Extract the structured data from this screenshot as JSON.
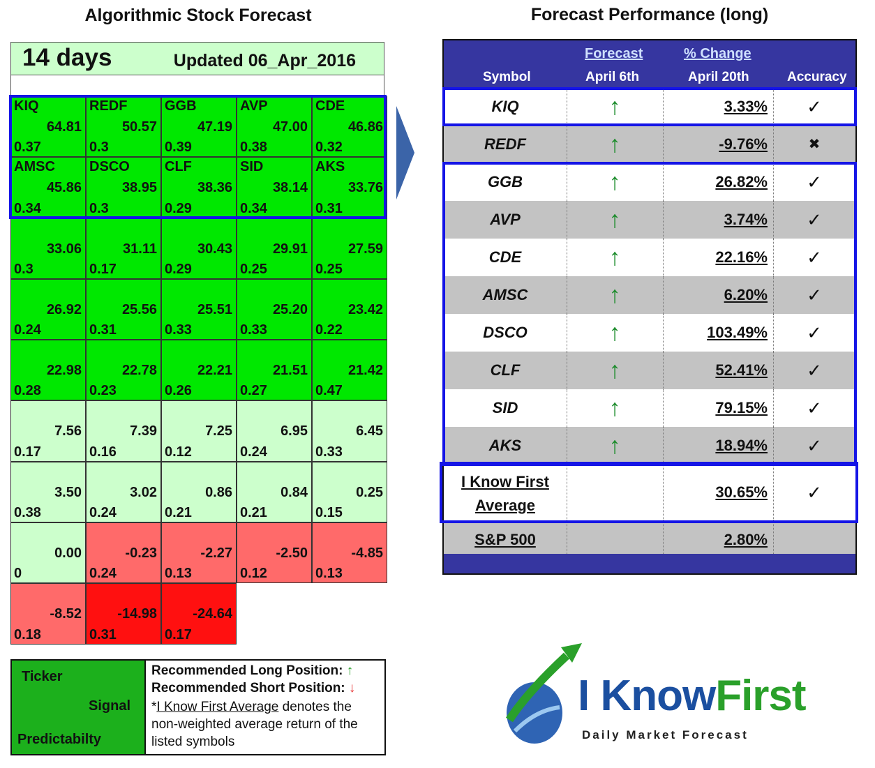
{
  "left": {
    "title": "Algorithmic Stock Forecast",
    "horizon": "14 days",
    "updated": "Updated 06_Apr_2016",
    "cells": [
      {
        "ticker": "KIQ",
        "signal": "64.81",
        "pred": "0.37",
        "shade": "strong"
      },
      {
        "ticker": "REDF",
        "signal": "50.57",
        "pred": "0.3",
        "shade": "strong"
      },
      {
        "ticker": "GGB",
        "signal": "47.19",
        "pred": "0.39",
        "shade": "strong"
      },
      {
        "ticker": "AVP",
        "signal": "47.00",
        "pred": "0.38",
        "shade": "strong"
      },
      {
        "ticker": "CDE",
        "signal": "46.86",
        "pred": "0.32",
        "shade": "strong"
      },
      {
        "ticker": "AMSC",
        "signal": "45.86",
        "pred": "0.34",
        "shade": "strong"
      },
      {
        "ticker": "DSCO",
        "signal": "38.95",
        "pred": "0.3",
        "shade": "strong"
      },
      {
        "ticker": "CLF",
        "signal": "38.36",
        "pred": "0.29",
        "shade": "strong"
      },
      {
        "ticker": "SID",
        "signal": "38.14",
        "pred": "0.34",
        "shade": "strong"
      },
      {
        "ticker": "AKS",
        "signal": "33.76",
        "pred": "0.31",
        "shade": "strong"
      },
      {
        "ticker": "",
        "signal": "33.06",
        "pred": "0.3",
        "shade": "strong"
      },
      {
        "ticker": "",
        "signal": "31.11",
        "pred": "0.17",
        "shade": "strong"
      },
      {
        "ticker": "",
        "signal": "30.43",
        "pred": "0.29",
        "shade": "strong"
      },
      {
        "ticker": "",
        "signal": "29.91",
        "pred": "0.25",
        "shade": "strong"
      },
      {
        "ticker": "",
        "signal": "27.59",
        "pred": "0.25",
        "shade": "strong"
      },
      {
        "ticker": "",
        "signal": "26.92",
        "pred": "0.24",
        "shade": "strong"
      },
      {
        "ticker": "",
        "signal": "25.56",
        "pred": "0.31",
        "shade": "strong"
      },
      {
        "ticker": "",
        "signal": "25.51",
        "pred": "0.33",
        "shade": "strong"
      },
      {
        "ticker": "",
        "signal": "25.20",
        "pred": "0.33",
        "shade": "strong"
      },
      {
        "ticker": "",
        "signal": "23.42",
        "pred": "0.22",
        "shade": "strong"
      },
      {
        "ticker": "",
        "signal": "22.98",
        "pred": "0.28",
        "shade": "strong"
      },
      {
        "ticker": "",
        "signal": "22.78",
        "pred": "0.23",
        "shade": "strong"
      },
      {
        "ticker": "",
        "signal": "22.21",
        "pred": "0.26",
        "shade": "strong"
      },
      {
        "ticker": "",
        "signal": "21.51",
        "pred": "0.27",
        "shade": "strong"
      },
      {
        "ticker": "",
        "signal": "21.42",
        "pred": "0.47",
        "shade": "strong"
      },
      {
        "ticker": "",
        "signal": "7.56",
        "pred": "0.17",
        "shade": "light"
      },
      {
        "ticker": "",
        "signal": "7.39",
        "pred": "0.16",
        "shade": "light"
      },
      {
        "ticker": "",
        "signal": "7.25",
        "pred": "0.12",
        "shade": "light"
      },
      {
        "ticker": "",
        "signal": "6.95",
        "pred": "0.24",
        "shade": "light"
      },
      {
        "ticker": "",
        "signal": "6.45",
        "pred": "0.33",
        "shade": "light"
      },
      {
        "ticker": "",
        "signal": "3.50",
        "pred": "0.38",
        "shade": "light"
      },
      {
        "ticker": "",
        "signal": "3.02",
        "pred": "0.24",
        "shade": "light"
      },
      {
        "ticker": "",
        "signal": "0.86",
        "pred": "0.21",
        "shade": "light"
      },
      {
        "ticker": "",
        "signal": "0.84",
        "pred": "0.21",
        "shade": "light"
      },
      {
        "ticker": "",
        "signal": "0.25",
        "pred": "0.15",
        "shade": "light"
      },
      {
        "ticker": "",
        "signal": "0.00",
        "pred": "0",
        "shade": "light"
      },
      {
        "ticker": "",
        "signal": "-0.23",
        "pred": "0.24",
        "shade": "neg"
      },
      {
        "ticker": "",
        "signal": "-2.27",
        "pred": "0.13",
        "shade": "neg"
      },
      {
        "ticker": "",
        "signal": "-2.50",
        "pred": "0.12",
        "shade": "neg"
      },
      {
        "ticker": "",
        "signal": "-4.85",
        "pred": "0.13",
        "shade": "neg"
      },
      {
        "ticker": "",
        "signal": "-8.52",
        "pred": "0.18",
        "shade": "neg"
      },
      {
        "ticker": "",
        "signal": "-14.98",
        "pred": "0.31",
        "shade": "negstrong"
      },
      {
        "ticker": "",
        "signal": "-24.64",
        "pred": "0.17",
        "shade": "negstrong"
      }
    ],
    "legend": {
      "ticker_label": "Ticker",
      "signal_label": "Signal",
      "pred_label": "Predictabilty",
      "long_text": "Recommended Long Position:",
      "short_text": "Recommended Short Position:",
      "avg_prefix": "*",
      "avg_link": "I Know First Average",
      "avg_rest": " denotes the non-weighted average return of the listed symbols",
      "long_arrow": "↑",
      "short_arrow": "↓"
    }
  },
  "right": {
    "title": "Forecast Performance (long)",
    "headers": {
      "symbol": "Symbol",
      "forecast_link": "Forecast",
      "forecast_date": "April  6th",
      "change_link": "% Change",
      "change_date": "April  20th",
      "accuracy": "Accuracy"
    },
    "rows": [
      {
        "symbol": "KIQ",
        "forecast": "↑",
        "change": "3.33%",
        "accuracy": "✓"
      },
      {
        "symbol": "REDF",
        "forecast": "↑",
        "change": "-9.76%",
        "accuracy": "✖"
      },
      {
        "symbol": "GGB",
        "forecast": "↑",
        "change": "26.82%",
        "accuracy": "✓"
      },
      {
        "symbol": "AVP",
        "forecast": "↑",
        "change": "3.74%",
        "accuracy": "✓"
      },
      {
        "symbol": "CDE",
        "forecast": "↑",
        "change": "22.16%",
        "accuracy": "✓"
      },
      {
        "symbol": "AMSC",
        "forecast": "↑",
        "change": "6.20%",
        "accuracy": "✓"
      },
      {
        "symbol": "DSCO",
        "forecast": "↑",
        "change": "103.49%",
        "accuracy": "✓"
      },
      {
        "symbol": "CLF",
        "forecast": "↑",
        "change": "52.41%",
        "accuracy": "✓"
      },
      {
        "symbol": "SID",
        "forecast": "↑",
        "change": "79.15%",
        "accuracy": "✓"
      },
      {
        "symbol": "AKS",
        "forecast": "↑",
        "change": "18.94%",
        "accuracy": "✓"
      }
    ],
    "average": {
      "line1": "I Know First",
      "line2": "Average",
      "change": "30.65%",
      "accuracy": "✓"
    },
    "sp500": {
      "label": "S&P 500",
      "change": "2.80%"
    }
  },
  "logo": {
    "brand_a": "I Know",
    "brand_b": "First",
    "tagline": "Daily Market Forecast"
  },
  "colors": {
    "strong_green": "#00e800",
    "light_green": "#ccffcc",
    "negative": "#ff6a6a",
    "strong_negative": "#ff1010",
    "header_blue": "#3636a0",
    "highlight": "#1515e6"
  }
}
